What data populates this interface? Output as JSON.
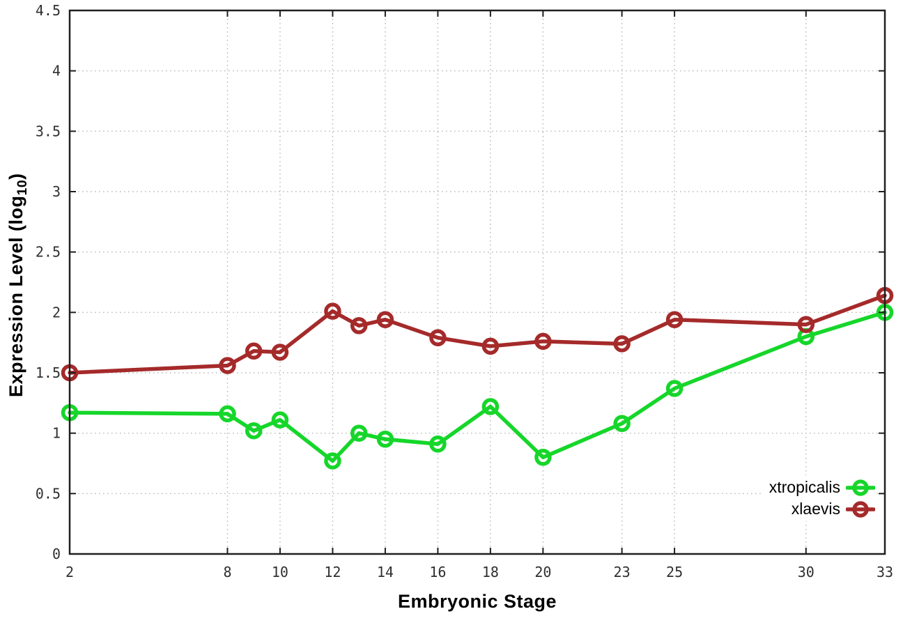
{
  "figure": {
    "xlabel": "Embryonic Stage",
    "ylabel_main": "Expression Level (log",
    "ylabel_sub": "10",
    "ylabel_close": ")"
  },
  "chart_data": {
    "type": "line",
    "title": "",
    "xlabel": "Embryonic Stage",
    "ylabel": "Expression Level (log10)",
    "x": [
      2,
      8,
      9,
      10,
      12,
      13,
      14,
      16,
      18,
      20,
      23,
      25,
      30,
      33
    ],
    "series": [
      {
        "name": "xtropicalis",
        "color": "#16d62a",
        "values": [
          1.17,
          1.16,
          1.02,
          1.11,
          0.77,
          1.0,
          0.95,
          0.91,
          1.22,
          0.8,
          1.08,
          1.37,
          1.8,
          2.0
        ]
      },
      {
        "name": "xlaevis",
        "color": "#a52a2a",
        "values": [
          1.5,
          1.56,
          1.68,
          1.67,
          2.01,
          1.89,
          1.94,
          1.79,
          1.72,
          1.76,
          1.74,
          1.94,
          1.9,
          2.14
        ]
      }
    ],
    "xticks": [
      2,
      8,
      10,
      12,
      14,
      16,
      18,
      20,
      23,
      25,
      30,
      33
    ],
    "yticks": [
      0,
      0.5,
      1,
      1.5,
      2,
      2.5,
      3,
      3.5,
      4,
      4.5
    ],
    "xlim": [
      2,
      33
    ],
    "ylim": [
      0,
      4.5
    ],
    "grid": true,
    "grid_style": "dotted",
    "marker": "open-circle",
    "legend_position": "bottom-right",
    "colors": {
      "grid": "#b9b9b9",
      "border": "#1f1f1f",
      "tick_text": "#2f2f2f"
    }
  }
}
